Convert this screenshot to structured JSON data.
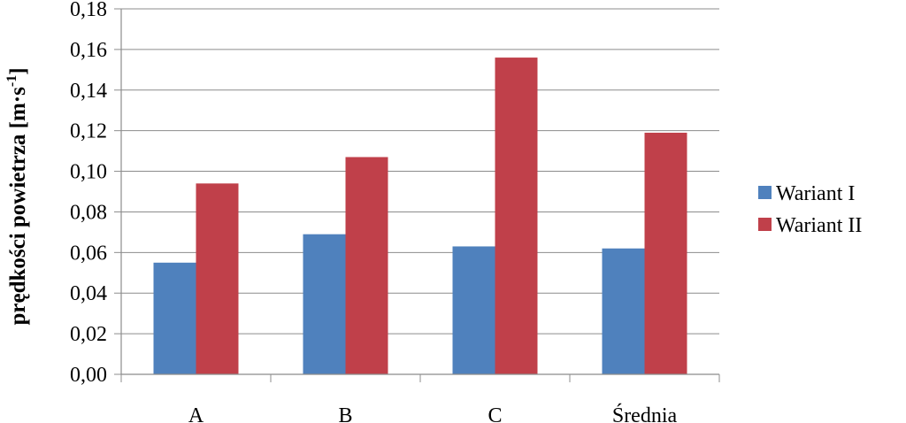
{
  "chart_data": {
    "type": "bar",
    "title": "",
    "xlabel": "",
    "ylabel": "prędkości powietrza [m·s",
    "ylabel_superscript": "-1",
    "ylabel_suffix": "]",
    "categories": [
      "A",
      "B",
      "C",
      "Średnia"
    ],
    "series": [
      {
        "name": "Wariant I",
        "color": "#4F81BD",
        "values": [
          0.055,
          0.069,
          0.063,
          0.062
        ]
      },
      {
        "name": "Wariant II",
        "color": "#C0404A",
        "values": [
          0.094,
          0.107,
          0.156,
          0.119
        ]
      }
    ],
    "ylim": [
      0,
      0.18
    ],
    "yticks": [
      "0,00",
      "0,02",
      "0,04",
      "0,06",
      "0,08",
      "0,10",
      "0,12",
      "0,14",
      "0,16",
      "0,18"
    ],
    "grid": true,
    "legend_position": "right"
  }
}
